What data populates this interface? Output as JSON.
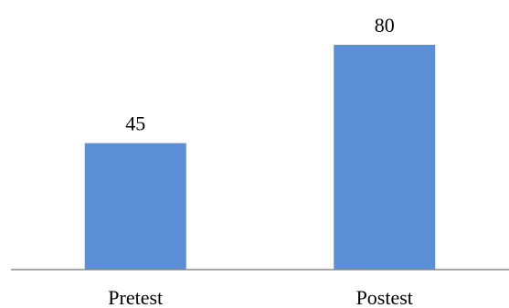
{
  "chart_data": {
    "type": "bar",
    "categories": [
      "Pretest",
      "Postest"
    ],
    "values": [
      45,
      80
    ],
    "data_labels": [
      "45",
      "80"
    ],
    "title": "",
    "xlabel": "",
    "ylabel": "",
    "ylim": [
      0,
      90
    ],
    "grid": false,
    "legend": "none",
    "colors": {
      "bar": "#5B8FD6",
      "axis": "#8C8C8C",
      "text": "#000000"
    }
  }
}
